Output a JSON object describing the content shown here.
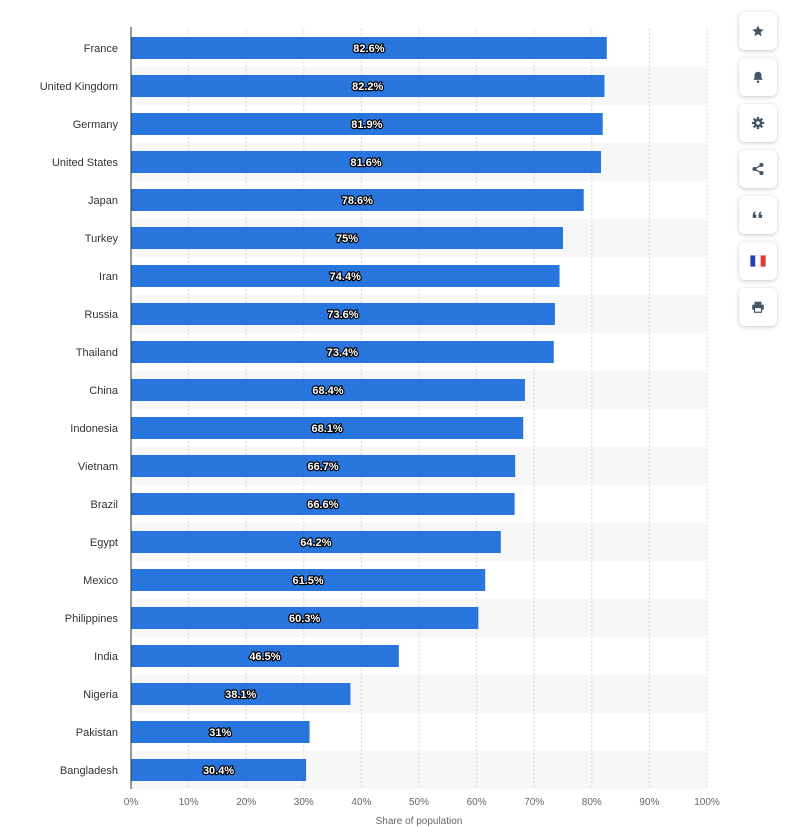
{
  "chart_data": {
    "type": "bar",
    "orientation": "horizontal",
    "categories": [
      "France",
      "United Kingdom",
      "Germany",
      "United States",
      "Japan",
      "Turkey",
      "Iran",
      "Russia",
      "Thailand",
      "China",
      "Indonesia",
      "Vietnam",
      "Brazil",
      "Egypt",
      "Mexico",
      "Philippines",
      "India",
      "Nigeria",
      "Pakistan",
      "Bangladesh"
    ],
    "values": [
      82.6,
      82.2,
      81.9,
      81.6,
      78.6,
      75,
      74.4,
      73.6,
      73.4,
      68.4,
      68.1,
      66.7,
      66.6,
      64.2,
      61.5,
      60.3,
      46.5,
      38.1,
      31,
      30.4
    ],
    "data_labels": [
      "82.6%",
      "82.2%",
      "81.9%",
      "81.6%",
      "78.6%",
      "75%",
      "74.4%",
      "73.6%",
      "73.4%",
      "68.4%",
      "68.1%",
      "66.7%",
      "66.6%",
      "64.2%",
      "61.5%",
      "60.3%",
      "46.5%",
      "38.1%",
      "31%",
      "30.4%"
    ],
    "xlabel": "Share of population",
    "ylabel": "",
    "xlim": [
      0,
      100
    ],
    "x_ticks": [
      "0%",
      "10%",
      "20%",
      "30%",
      "40%",
      "50%",
      "60%",
      "70%",
      "80%",
      "90%",
      "100%"
    ],
    "grid": true,
    "bar_color": "#2876dd",
    "alternate_row_color": "#f7f7f7"
  },
  "toolbar": {
    "buttons": [
      {
        "icon": "star-icon",
        "label": "favorite"
      },
      {
        "icon": "bell-icon",
        "label": "notification"
      },
      {
        "icon": "gear-icon",
        "label": "settings"
      },
      {
        "icon": "share-icon",
        "label": "share"
      },
      {
        "icon": "quote-icon",
        "label": "cite"
      },
      {
        "icon": "french-flag-icon",
        "label": "language"
      },
      {
        "icon": "printer-icon",
        "label": "print"
      }
    ],
    "icon_color": "#445566"
  }
}
